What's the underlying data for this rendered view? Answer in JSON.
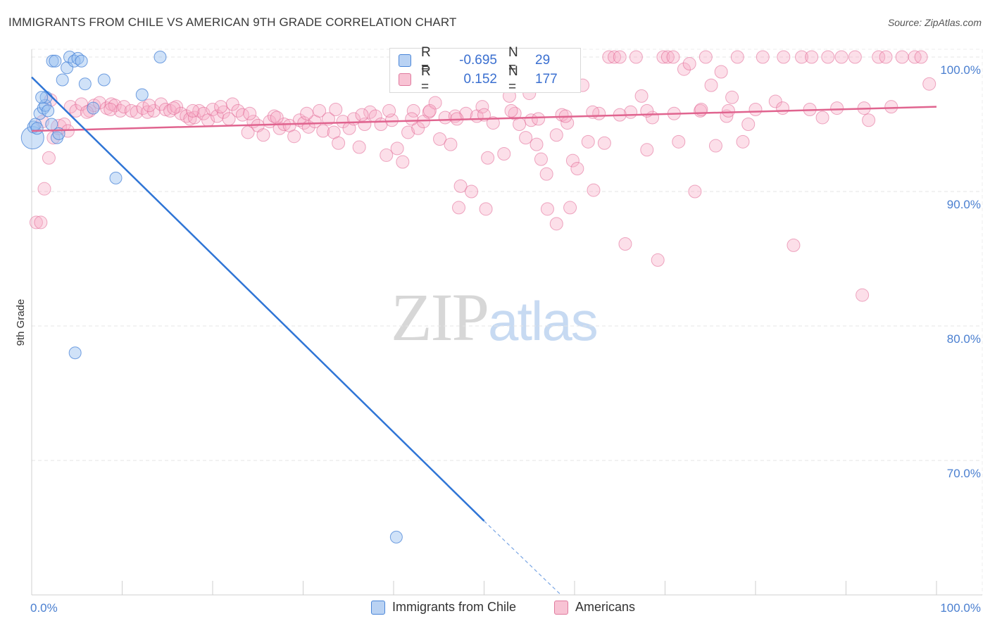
{
  "title": "IMMIGRANTS FROM CHILE VS AMERICAN 9TH GRADE CORRELATION CHART",
  "source": "Source: ZipAtlas.com",
  "watermark": {
    "zip": "ZIP",
    "atlas": "atlas"
  },
  "legend": {
    "blue": {
      "r_label": "R =",
      "r_value": "-0.695",
      "n_label": "N =",
      "n_value": "29"
    },
    "pink": {
      "r_label": "R =",
      "r_value": "0.152",
      "n_label": "N =",
      "n_value": "177"
    }
  },
  "bottom_legend": {
    "blue": "Immigrants from Chile",
    "pink": "Americans"
  },
  "colors": {
    "blue": "#4a86d8",
    "blue_fill": "#a9c8f0",
    "pink": "#e05c8a",
    "pink_fill": "#f6b6cb",
    "grid": "#e3e3e3",
    "tick_text": "#4a7fd0"
  },
  "chart_data": {
    "type": "scatter",
    "title": "IMMIGRANTS FROM CHILE VS AMERICAN 9TH GRADE CORRELATION CHART",
    "xlabel": "",
    "ylabel": "9th Grade",
    "xlim": [
      0,
      100
    ],
    "ylim": [
      60,
      103
    ],
    "x_tick_labels": [
      "0.0%",
      "100.0%"
    ],
    "y_ticks": [
      70,
      80,
      90,
      100
    ],
    "y_tick_labels": [
      "70.0%",
      "80.0%",
      "90.0%",
      "100.0%"
    ],
    "series": [
      {
        "name": "Immigrants from Chile",
        "color": "#4a86d8",
        "trend": {
          "x0": 0,
          "y0": 98.5,
          "x1": 50,
          "y1": 65.5,
          "dashed_to_x": 58.5,
          "dashed_to_y": 60
        },
        "points": [
          [
            0.1,
            94.0,
            3
          ],
          [
            0.2,
            94.8,
            1
          ],
          [
            0.4,
            95.0,
            1
          ],
          [
            0.9,
            95.8,
            1
          ],
          [
            1.3,
            96.2,
            1
          ],
          [
            1.5,
            96.4,
            1
          ],
          [
            1.6,
            97.0,
            1
          ],
          [
            1.8,
            96.0,
            1
          ],
          [
            2.2,
            95.0,
            1
          ],
          [
            2.3,
            99.7,
            1
          ],
          [
            2.6,
            99.7,
            1
          ],
          [
            2.8,
            94.0,
            1
          ],
          [
            3.0,
            94.3,
            1
          ],
          [
            3.4,
            98.3,
            1
          ],
          [
            3.9,
            99.2,
            1
          ],
          [
            4.2,
            100.0,
            1
          ],
          [
            4.7,
            99.7,
            1
          ],
          [
            5.1,
            99.9,
            1
          ],
          [
            5.5,
            99.7,
            1
          ],
          [
            5.9,
            98.0,
            1
          ],
          [
            6.8,
            96.2,
            1
          ],
          [
            8.0,
            98.3,
            1
          ],
          [
            9.3,
            91.0,
            1
          ],
          [
            12.2,
            97.2,
            1
          ],
          [
            14.2,
            100.0,
            1
          ],
          [
            4.8,
            78.0,
            1
          ],
          [
            40.3,
            64.3,
            1
          ],
          [
            0.6,
            94.7,
            1
          ],
          [
            1.1,
            97.0,
            1
          ]
        ]
      },
      {
        "name": "Americans",
        "color": "#e05c8a",
        "trend": {
          "x0": 0,
          "y0": 94.5,
          "x1": 100,
          "y1": 96.3
        },
        "points": [
          [
            0.5,
            87.7,
            1
          ],
          [
            1.0,
            87.7,
            1
          ],
          [
            1.4,
            90.2,
            1
          ],
          [
            1.9,
            92.5,
            1
          ],
          [
            2.4,
            94.0,
            1
          ],
          [
            3.0,
            94.8,
            2
          ],
          [
            3.6,
            95.0,
            1
          ],
          [
            4.0,
            94.5,
            1
          ],
          [
            4.3,
            96.3,
            1
          ],
          [
            4.9,
            96.0,
            1
          ],
          [
            5.5,
            96.5,
            1
          ],
          [
            6.4,
            96.0,
            1
          ],
          [
            6.9,
            96.4,
            1
          ],
          [
            7.5,
            96.6,
            1
          ],
          [
            8.3,
            96.2,
            1
          ],
          [
            8.8,
            96.5,
            1
          ],
          [
            9.2,
            96.4,
            1
          ],
          [
            9.8,
            96.0,
            1
          ],
          [
            10.2,
            96.3,
            1
          ],
          [
            11.0,
            96.0,
            1
          ],
          [
            11.6,
            95.9,
            1
          ],
          [
            12.3,
            96.2,
            1
          ],
          [
            12.8,
            95.9,
            1
          ],
          [
            13.5,
            96.0,
            1
          ],
          [
            14.3,
            96.5,
            1
          ],
          [
            14.8,
            96.1,
            1
          ],
          [
            15.3,
            96.0,
            1
          ],
          [
            16.0,
            96.3,
            1
          ],
          [
            16.5,
            95.8,
            1
          ],
          [
            17.1,
            95.6,
            1
          ],
          [
            17.5,
            95.4,
            1
          ],
          [
            18.0,
            95.5,
            1
          ],
          [
            18.5,
            96.0,
            1
          ],
          [
            19.0,
            95.8,
            1
          ],
          [
            19.5,
            95.3,
            1
          ],
          [
            20.0,
            96.1,
            1
          ],
          [
            20.5,
            95.6,
            1
          ],
          [
            21.2,
            95.9,
            1
          ],
          [
            21.8,
            95.4,
            1
          ],
          [
            22.2,
            96.5,
            1
          ],
          [
            22.8,
            96.0,
            1
          ],
          [
            23.3,
            95.7,
            1
          ],
          [
            23.9,
            94.4,
            1
          ],
          [
            24.5,
            95.2,
            1
          ],
          [
            25.0,
            94.9,
            1
          ],
          [
            25.6,
            94.2,
            1
          ],
          [
            26.3,
            95.2,
            1
          ],
          [
            26.8,
            95.6,
            1
          ],
          [
            27.4,
            94.7,
            1
          ],
          [
            27.9,
            95.0,
            1
          ],
          [
            28.5,
            94.9,
            1
          ],
          [
            29.0,
            94.1,
            1
          ],
          [
            29.6,
            95.3,
            1
          ],
          [
            30.1,
            95.1,
            1
          ],
          [
            30.6,
            94.8,
            1
          ],
          [
            31.3,
            95.2,
            1
          ],
          [
            31.8,
            96.0,
            1
          ],
          [
            32.2,
            94.5,
            1
          ],
          [
            32.8,
            95.4,
            1
          ],
          [
            33.4,
            94.4,
            1
          ],
          [
            33.9,
            93.6,
            1
          ],
          [
            34.4,
            95.2,
            1
          ],
          [
            35.1,
            94.7,
            1
          ],
          [
            35.6,
            95.4,
            1
          ],
          [
            36.2,
            93.3,
            1
          ],
          [
            36.8,
            95.0,
            1
          ],
          [
            37.4,
            95.9,
            1
          ],
          [
            38.0,
            95.6,
            1
          ],
          [
            38.6,
            95.0,
            1
          ],
          [
            39.2,
            92.7,
            1
          ],
          [
            39.8,
            95.3,
            1
          ],
          [
            40.4,
            93.2,
            1
          ],
          [
            41.0,
            92.2,
            1
          ],
          [
            41.6,
            94.4,
            1
          ],
          [
            42.2,
            96.0,
            1
          ],
          [
            42.7,
            94.7,
            1
          ],
          [
            43.3,
            95.2,
            1
          ],
          [
            43.9,
            95.9,
            1
          ],
          [
            44.6,
            96.6,
            1
          ],
          [
            45.1,
            93.9,
            1
          ],
          [
            45.7,
            95.5,
            1
          ],
          [
            46.3,
            93.5,
            1
          ],
          [
            46.8,
            95.6,
            1
          ],
          [
            47.4,
            90.4,
            1
          ],
          [
            48.0,
            95.8,
            1
          ],
          [
            48.6,
            90.0,
            1
          ],
          [
            49.2,
            95.6,
            1
          ],
          [
            49.8,
            96.3,
            1
          ],
          [
            50.4,
            92.5,
            1
          ],
          [
            51.0,
            95.1,
            1
          ],
          [
            51.6,
            98.5,
            1
          ],
          [
            52.2,
            92.8,
            1
          ],
          [
            52.8,
            97.1,
            1
          ],
          [
            53.4,
            95.8,
            1
          ],
          [
            53.9,
            95.0,
            1
          ],
          [
            54.6,
            94.0,
            1
          ],
          [
            55.2,
            95.3,
            1
          ],
          [
            55.8,
            93.5,
            1
          ],
          [
            56.3,
            92.4,
            1
          ],
          [
            56.9,
            91.3,
            1
          ],
          [
            57.5,
            100.0,
            1
          ],
          [
            58.0,
            94.2,
            1
          ],
          [
            58.6,
            95.7,
            1
          ],
          [
            59.2,
            95.1,
            1
          ],
          [
            59.8,
            92.3,
            1
          ],
          [
            60.3,
            91.7,
            1
          ],
          [
            60.9,
            97.9,
            1
          ],
          [
            61.5,
            93.7,
            1
          ],
          [
            62.1,
            90.1,
            1
          ],
          [
            62.7,
            95.8,
            1
          ],
          [
            63.3,
            93.6,
            1
          ],
          [
            63.8,
            100.0,
            1
          ],
          [
            64.4,
            100.0,
            1
          ],
          [
            65.0,
            100.0,
            1
          ],
          [
            65.6,
            86.1,
            1
          ],
          [
            66.2,
            95.9,
            1
          ],
          [
            66.8,
            100.0,
            1
          ],
          [
            67.4,
            97.1,
            1
          ],
          [
            68.0,
            93.1,
            1
          ],
          [
            68.6,
            95.5,
            1
          ],
          [
            69.2,
            84.9,
            1
          ],
          [
            69.8,
            100.0,
            1
          ],
          [
            70.3,
            100.0,
            1
          ],
          [
            70.9,
            100.0,
            1
          ],
          [
            71.5,
            93.7,
            1
          ],
          [
            72.1,
            99.1,
            1
          ],
          [
            72.7,
            99.5,
            1
          ],
          [
            73.3,
            90.0,
            1
          ],
          [
            73.9,
            96.0,
            1
          ],
          [
            74.5,
            100.0,
            1
          ],
          [
            75.1,
            97.9,
            1
          ],
          [
            75.6,
            93.4,
            1
          ],
          [
            76.2,
            98.9,
            1
          ],
          [
            76.8,
            95.6,
            1
          ],
          [
            77.4,
            97.0,
            1
          ],
          [
            78.0,
            100.0,
            1
          ],
          [
            78.6,
            93.7,
            1
          ],
          [
            79.2,
            95.0,
            1
          ],
          [
            80.8,
            100.0,
            1
          ],
          [
            82.2,
            96.7,
            1
          ],
          [
            83.1,
            100.0,
            1
          ],
          [
            84.2,
            86.0,
            1
          ],
          [
            85.1,
            100.0,
            1
          ],
          [
            86.2,
            100.0,
            1
          ],
          [
            87.4,
            95.5,
            1
          ],
          [
            88.0,
            100.0,
            1
          ],
          [
            89.5,
            100.0,
            1
          ],
          [
            91.0,
            100.0,
            1
          ],
          [
            91.8,
            82.3,
            1
          ],
          [
            92.5,
            95.3,
            1
          ],
          [
            93.6,
            100.0,
            1
          ],
          [
            94.4,
            100.0,
            1
          ],
          [
            96.2,
            100.0,
            1
          ],
          [
            97.6,
            100.0,
            1
          ],
          [
            98.3,
            100.0,
            1
          ],
          [
            99.2,
            98.0,
            1
          ],
          [
            1.2,
            95.2,
            1
          ],
          [
            2.1,
            96.8,
            1
          ],
          [
            6.1,
            95.9,
            1
          ],
          [
            8.7,
            96.1,
            1
          ],
          [
            13.0,
            96.4,
            1
          ],
          [
            15.7,
            96.2,
            1
          ],
          [
            17.8,
            96.0,
            1
          ],
          [
            20.9,
            96.3,
            1
          ],
          [
            24.1,
            95.8,
            1
          ],
          [
            27.1,
            95.5,
            1
          ],
          [
            30.4,
            95.8,
            1
          ],
          [
            33.6,
            96.1,
            1
          ],
          [
            36.5,
            95.7,
            1
          ],
          [
            39.5,
            96.0,
            1
          ],
          [
            42.0,
            95.4,
            1
          ],
          [
            44.0,
            96.0,
            1
          ],
          [
            47.0,
            95.4,
            1
          ],
          [
            50.0,
            95.7,
            1
          ],
          [
            53.0,
            96.0,
            1
          ],
          [
            56.0,
            95.4,
            1
          ],
          [
            59.0,
            95.6,
            1
          ],
          [
            62.0,
            95.9,
            1
          ],
          [
            65.0,
            95.7,
            1
          ],
          [
            68.0,
            96.0,
            1
          ],
          [
            71.0,
            95.8,
            1
          ],
          [
            74.0,
            96.1,
            1
          ],
          [
            77.0,
            96.0,
            1
          ],
          [
            80.0,
            96.1,
            1
          ],
          [
            83.0,
            96.2,
            1
          ],
          [
            86.0,
            96.1,
            1
          ],
          [
            89.0,
            96.2,
            1
          ],
          [
            92.0,
            96.2,
            1
          ],
          [
            95.0,
            96.3,
            1
          ],
          [
            55.0,
            97.3,
            1
          ],
          [
            57.0,
            88.7,
            1
          ],
          [
            47.2,
            88.8,
            1
          ],
          [
            59.5,
            88.8,
            1
          ],
          [
            50.2,
            88.7,
            1
          ],
          [
            58.0,
            87.6,
            1
          ]
        ]
      }
    ]
  }
}
